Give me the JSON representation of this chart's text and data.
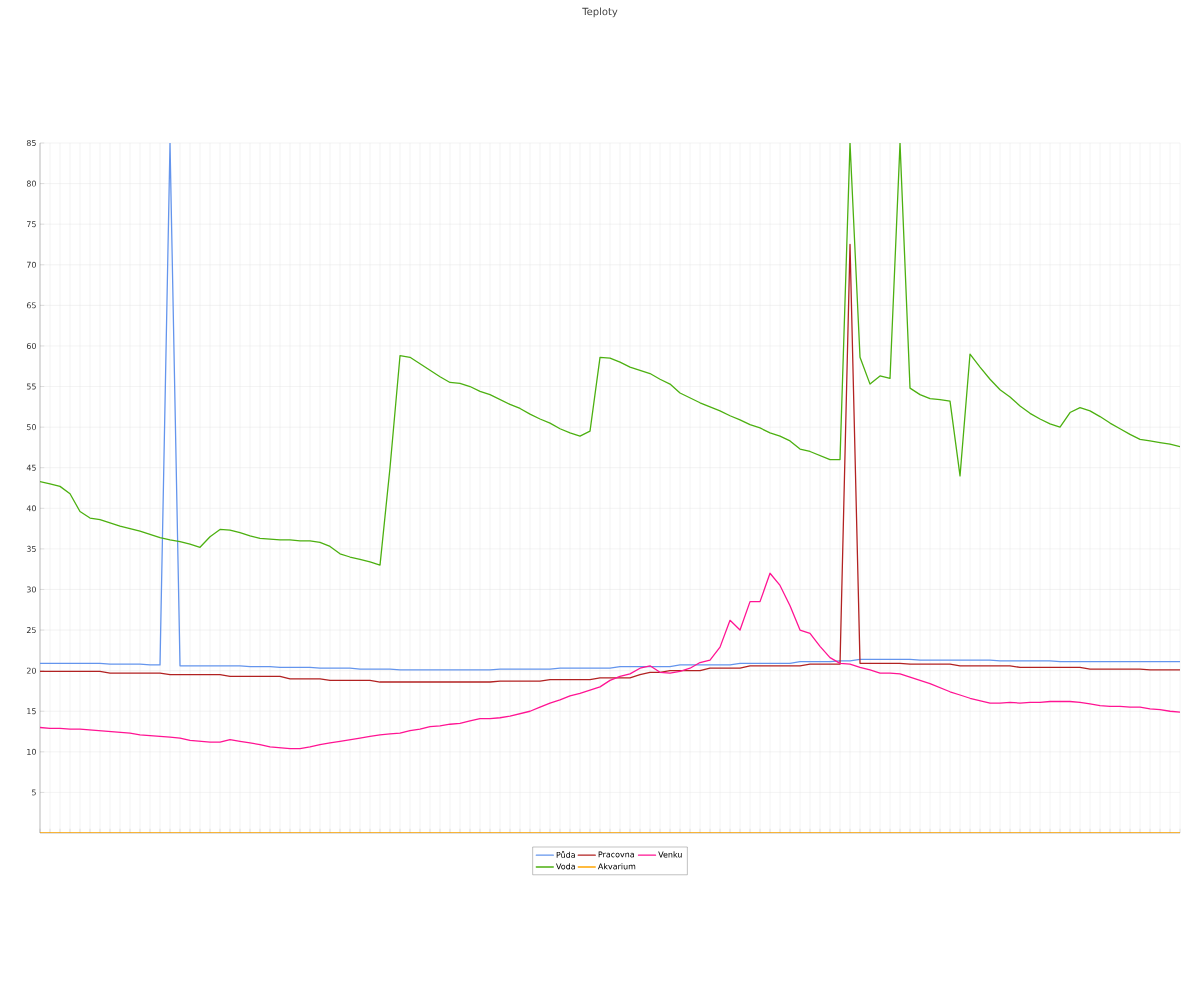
{
  "chart_data": {
    "type": "line",
    "title": "Teploty",
    "categories": [
      null,
      null,
      null,
      null,
      null,
      null,
      null,
      null,
      null,
      null,
      null,
      null,
      null,
      null,
      null,
      null,
      null,
      null,
      null,
      null,
      null,
      null,
      null,
      null,
      null,
      null,
      null,
      null,
      null,
      null,
      null,
      null,
      null,
      null,
      null,
      null,
      null,
      null,
      null,
      null,
      null,
      null,
      null,
      null,
      null,
      null,
      null,
      null,
      null,
      null,
      null,
      null,
      null,
      null,
      null,
      null,
      null,
      null,
      null,
      null,
      null,
      null,
      null,
      null,
      null,
      null,
      null,
      null,
      null,
      null,
      null,
      null,
      null,
      null,
      null,
      null,
      null,
      null,
      null,
      null,
      null,
      null,
      null,
      null,
      null,
      null,
      null,
      null,
      null,
      null,
      null,
      null,
      null,
      null,
      null,
      null,
      null,
      null,
      null,
      null,
      null,
      null,
      null,
      null,
      null,
      null,
      null,
      null,
      null,
      null,
      null,
      null,
      null,
      null,
      null
    ],
    "series": [
      {
        "name": "Půda",
        "color": "#6495ed",
        "values": [
          20.9,
          20.9,
          20.9,
          20.9,
          20.9,
          20.9,
          20.9,
          20.8,
          20.8,
          20.8,
          20.8,
          20.7,
          20.7,
          85,
          20.6,
          20.6,
          20.6,
          20.6,
          20.6,
          20.6,
          20.6,
          20.5,
          20.5,
          20.5,
          20.4,
          20.4,
          20.4,
          20.4,
          20.3,
          20.3,
          20.3,
          20.3,
          20.2,
          20.2,
          20.2,
          20.2,
          20.1,
          20.1,
          20.1,
          20.1,
          20.1,
          20.1,
          20.1,
          20.1,
          20.1,
          20.1,
          20.2,
          20.2,
          20.2,
          20.2,
          20.2,
          20.2,
          20.3,
          20.3,
          20.3,
          20.3,
          20.3,
          20.3,
          20.5,
          20.5,
          20.5,
          20.5,
          20.5,
          20.5,
          20.7,
          20.7,
          20.7,
          20.7,
          20.7,
          20.7,
          20.9,
          20.9,
          20.9,
          20.9,
          20.9,
          20.9,
          21.1,
          21.1,
          21.1,
          21.1,
          21.2,
          21.2,
          21.4,
          21.4,
          21.4,
          21.4,
          21.4,
          21.4,
          21.3,
          21.3,
          21.3,
          21.3,
          21.3,
          21.3,
          21.3,
          21.3,
          21.2,
          21.2,
          21.2,
          21.2,
          21.2,
          21.2,
          21.1,
          21.1,
          21.1,
          21.1,
          21.1,
          21.1,
          21.1,
          21.1,
          21.1,
          21.1,
          21.1,
          21.1,
          21.1
        ]
      },
      {
        "name": "Pracovna",
        "color": "#b22222",
        "values": [
          19.9,
          19.9,
          19.9,
          19.9,
          19.9,
          19.9,
          19.9,
          19.7,
          19.7,
          19.7,
          19.7,
          19.7,
          19.7,
          19.5,
          19.5,
          19.5,
          19.5,
          19.5,
          19.5,
          19.3,
          19.3,
          19.3,
          19.3,
          19.3,
          19.3,
          19.0,
          19.0,
          19.0,
          19.0,
          18.8,
          18.8,
          18.8,
          18.8,
          18.8,
          18.6,
          18.6,
          18.6,
          18.6,
          18.6,
          18.6,
          18.6,
          18.6,
          18.6,
          18.6,
          18.6,
          18.6,
          18.7,
          18.7,
          18.7,
          18.7,
          18.7,
          18.9,
          18.9,
          18.9,
          18.9,
          18.9,
          19.1,
          19.1,
          19.1,
          19.1,
          19.5,
          19.8,
          19.8,
          20.0,
          20.0,
          20.0,
          20.0,
          20.3,
          20.3,
          20.3,
          20.3,
          20.6,
          20.6,
          20.6,
          20.6,
          20.6,
          20.6,
          20.8,
          20.8,
          20.8,
          20.8,
          72.5,
          20.9,
          20.9,
          20.9,
          20.9,
          20.9,
          20.8,
          20.8,
          20.8,
          20.8,
          20.8,
          20.6,
          20.6,
          20.6,
          20.6,
          20.6,
          20.6,
          20.4,
          20.4,
          20.4,
          20.4,
          20.4,
          20.4,
          20.4,
          20.2,
          20.2,
          20.2,
          20.2,
          20.2,
          20.2,
          20.1,
          20.1,
          20.1,
          20.1
        ]
      },
      {
        "name": "Venku",
        "color": "#ff1493",
        "values": [
          13.0,
          12.9,
          12.9,
          12.8,
          12.8,
          12.7,
          12.6,
          12.5,
          12.4,
          12.3,
          12.1,
          12.0,
          11.9,
          11.8,
          11.7,
          11.4,
          11.3,
          11.2,
          11.2,
          11.5,
          11.3,
          11.1,
          10.9,
          10.6,
          10.5,
          10.4,
          10.4,
          10.6,
          10.9,
          11.1,
          11.3,
          11.5,
          11.7,
          11.9,
          12.1,
          12.2,
          12.3,
          12.6,
          12.8,
          13.1,
          13.2,
          13.4,
          13.5,
          13.8,
          14.1,
          14.1,
          14.2,
          14.4,
          14.7,
          15.0,
          15.5,
          16.0,
          16.4,
          16.9,
          17.2,
          17.6,
          18.0,
          18.8,
          19.3,
          19.6,
          20.3,
          20.6,
          19.8,
          19.7,
          19.9,
          20.3,
          21.0,
          21.3,
          22.9,
          26.2,
          25.0,
          28.5,
          28.5,
          32.0,
          30.5,
          28.0,
          25.0,
          24.6,
          23.0,
          21.6,
          20.9,
          20.8,
          20.4,
          20.1,
          19.7,
          19.7,
          19.6,
          19.2,
          18.8,
          18.4,
          17.9,
          17.4,
          17.0,
          16.6,
          16.3,
          16.0,
          16.0,
          16.1,
          16.0,
          16.1,
          16.1,
          16.2,
          16.2,
          16.2,
          16.1,
          15.9,
          15.7,
          15.6,
          15.6,
          15.5,
          15.5,
          15.3,
          15.2,
          15.0,
          14.9
        ]
      },
      {
        "name": "Voda",
        "color": "#4cb010",
        "values": [
          43.3,
          43.0,
          42.7,
          41.8,
          39.6,
          38.8,
          38.6,
          38.2,
          37.8,
          37.5,
          37.2,
          36.8,
          36.4,
          36.1,
          35.9,
          35.6,
          35.2,
          36.5,
          37.4,
          37.3,
          37.0,
          36.6,
          36.3,
          36.2,
          36.1,
          36.1,
          36.0,
          36.0,
          35.8,
          35.3,
          34.4,
          34.0,
          33.7,
          33.4,
          33.0,
          45.0,
          58.8,
          58.6,
          57.8,
          57.0,
          56.2,
          55.5,
          55.4,
          55.0,
          54.4,
          54.0,
          53.4,
          52.8,
          52.3,
          51.6,
          51.0,
          50.5,
          49.8,
          49.3,
          48.9,
          49.5,
          58.6,
          58.5,
          58.0,
          57.4,
          57.0,
          56.6,
          55.9,
          55.3,
          54.2,
          53.6,
          53.0,
          52.5,
          52.0,
          51.4,
          50.9,
          50.3,
          49.9,
          49.3,
          48.9,
          48.3,
          47.3,
          47.0,
          46.5,
          46.0,
          46.0,
          85,
          58.6,
          55.3,
          56.3,
          56.0,
          85,
          54.8,
          54.0,
          53.5,
          53.4,
          53.2,
          44.0,
          59.0,
          57.4,
          55.9,
          54.6,
          53.7,
          52.6,
          51.7,
          51.0,
          50.4,
          50.0,
          51.8,
          52.4,
          52.0,
          51.3,
          50.5,
          49.8,
          49.1,
          48.5,
          48.3,
          48.1,
          47.9,
          47.6
        ]
      },
      {
        "name": "Akvarium",
        "color": "#ffa500",
        "values": [
          0,
          0,
          0,
          0,
          0,
          0,
          0,
          0,
          0,
          0,
          0,
          0,
          0,
          0,
          0,
          0,
          0,
          0,
          0,
          0,
          0,
          0,
          0,
          0,
          0,
          0,
          0,
          0,
          0,
          0,
          0,
          0,
          0,
          0,
          0,
          0,
          0,
          0,
          0,
          0,
          0,
          0,
          0,
          0,
          0,
          0,
          0,
          0,
          0,
          0,
          0,
          0,
          0,
          0,
          0,
          0,
          0,
          0,
          0,
          0,
          0,
          0,
          0,
          0,
          0,
          0,
          0,
          0,
          0,
          0,
          0,
          0,
          0,
          0,
          0,
          0,
          0,
          0,
          0,
          0,
          0,
          0,
          0,
          0,
          0,
          0,
          0,
          0,
          0,
          0,
          0,
          0,
          0,
          0,
          0,
          0,
          0,
          0,
          0,
          0,
          0,
          0,
          0,
          0,
          0,
          0,
          0,
          0,
          0,
          0,
          0,
          0,
          0,
          0,
          0
        ]
      }
    ],
    "ylim": [
      0,
      85
    ],
    "yticks": [
      5,
      10,
      15,
      20,
      25,
      30,
      35,
      40,
      45,
      50,
      55,
      60,
      65,
      70,
      75,
      80,
      85
    ],
    "grid": true,
    "legend": "bottom",
    "marker": "none",
    "line_style": "solid"
  }
}
